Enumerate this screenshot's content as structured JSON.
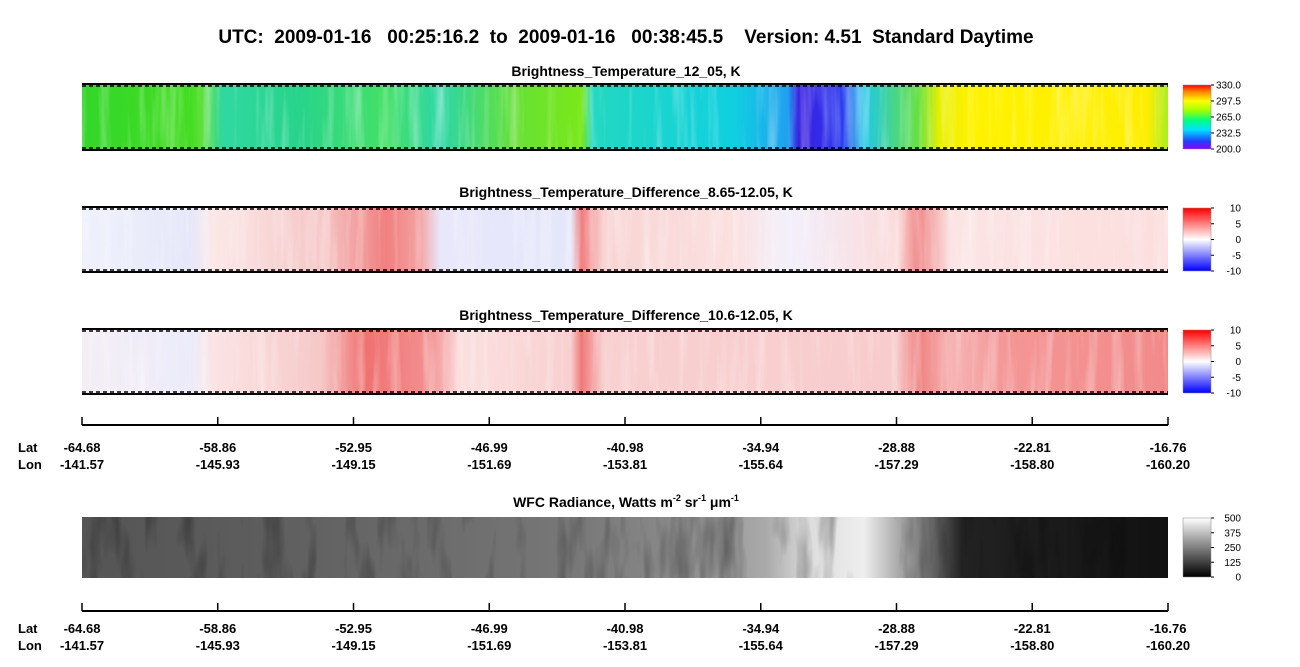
{
  "title": "UTC:  2009-01-16   00:25:16.2  to  2009-01-16   00:38:45.5    Version: 4.51  Standard Daytime",
  "panels": [
    {
      "title": "Brightness_Temperature_12_05, K",
      "colorbar_ticks": [
        {
          "value": 330,
          "label": "330.0"
        },
        {
          "value": 297.5,
          "label": "297.5"
        },
        {
          "value": 265,
          "label": "265.0"
        },
        {
          "value": 232.5,
          "label": "232.5"
        },
        {
          "value": 200,
          "label": "200.0"
        }
      ]
    },
    {
      "title": "Brightness_Temperature_Difference_8.65-12.05, K",
      "colorbar_ticks": [
        10,
        5,
        0,
        -5,
        -10
      ]
    },
    {
      "title": "Brightness_Temperature_Difference_10.6-12.05, K",
      "colorbar_ticks": [
        10,
        5,
        0,
        -5,
        -10
      ]
    },
    {
      "title_parts": [
        "WFC Radiance, Watts m",
        "-2",
        " sr",
        "-1",
        " μm",
        "-1"
      ],
      "colorbar_ticks": [
        500,
        375,
        250,
        125,
        0
      ]
    }
  ],
  "axes": [
    {
      "lat_label": "Lat",
      "lon_label": "Lon",
      "lat": [
        -64.68,
        -58.86,
        -52.95,
        -46.99,
        -40.98,
        -34.94,
        -28.88,
        -22.81,
        -16.76
      ],
      "lon": [
        -141.57,
        -145.93,
        -149.15,
        -151.69,
        -153.81,
        -155.64,
        -157.29,
        {
          "value": -158.8,
          "label": "-158.80"
        },
        {
          "value": -160.2,
          "label": "-160.20"
        }
      ]
    },
    {
      "lat_label": "Lat",
      "lon_label": "Lon",
      "lat": [
        -64.68,
        -58.86,
        -52.95,
        -46.99,
        -40.98,
        -34.94,
        -28.88,
        -22.81,
        -16.76
      ],
      "lon": [
        -141.57,
        -145.93,
        -149.15,
        -151.69,
        -153.81,
        -155.64,
        -157.29,
        {
          "value": -158.8,
          "label": "-158.80"
        },
        {
          "value": -160.2,
          "label": "-160.20"
        }
      ]
    }
  ]
}
